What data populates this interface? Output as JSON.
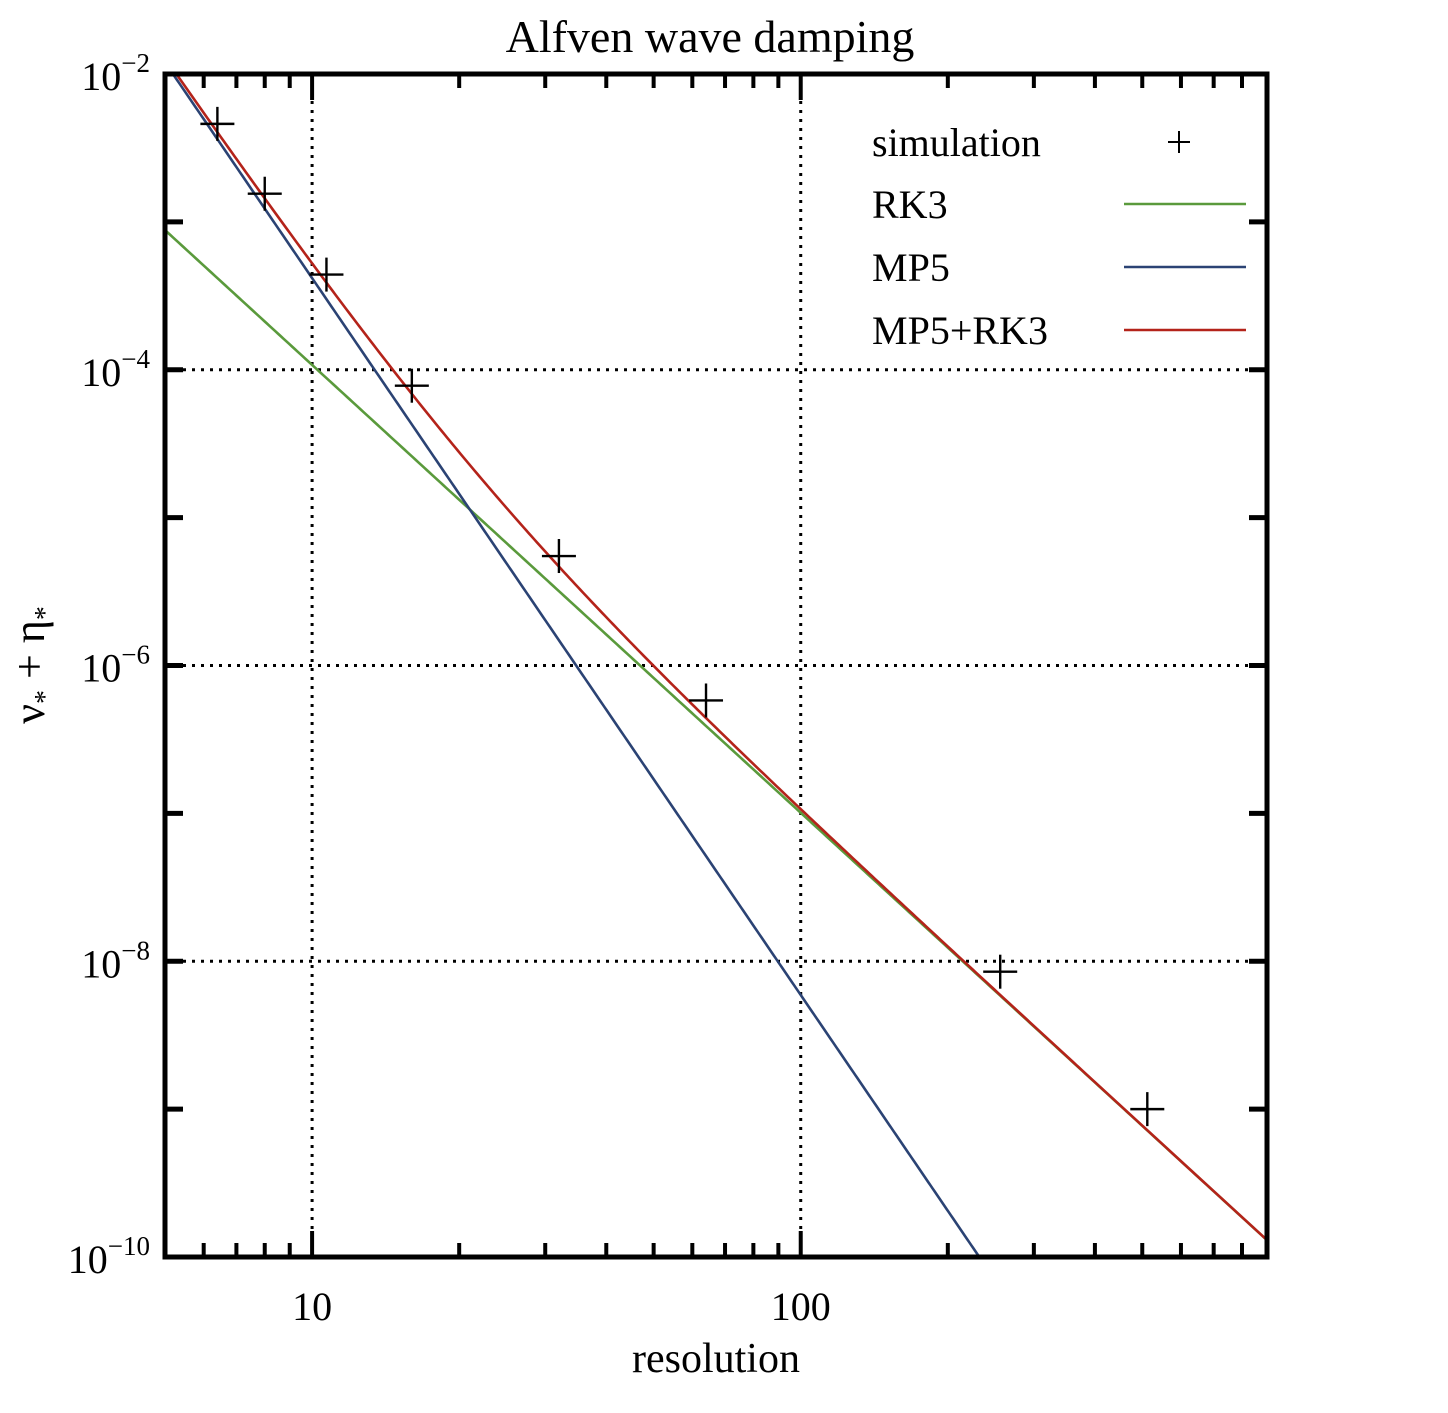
{
  "chart_data": {
    "type": "line",
    "title": "Alfven wave damping",
    "xlabel": "resolution",
    "ylabel_main": "ν",
    "ylabel_sub1": "*",
    "ylabel_mid": " + η",
    "ylabel_sub2": "*",
    "x_scale": "log",
    "y_scale": "log",
    "xlim": [
      5,
      900
    ],
    "ylim": [
      1e-10,
      0.01
    ],
    "grid": "dotted",
    "legend_position": "top-right",
    "x_tick_labels": [
      {
        "value": 10,
        "label": "10"
      },
      {
        "value": 100,
        "label": "100"
      }
    ],
    "y_tick_labels": [
      {
        "value": 0.01,
        "base": "10",
        "exp": "−2"
      },
      {
        "value": 0.0001,
        "base": "10",
        "exp": "−4"
      },
      {
        "value": 1e-06,
        "base": "10",
        "exp": "−6"
      },
      {
        "value": 1e-08,
        "base": "10",
        "exp": "−8"
      },
      {
        "value": 1e-10,
        "base": "10",
        "exp": "−10"
      }
    ],
    "series": [
      {
        "name": "simulation",
        "kind": "markers",
        "marker": "+",
        "color": "#000000",
        "x": [
          6.4,
          8,
          10.7,
          16,
          32,
          64,
          256,
          512
        ],
        "y": [
          0.0046,
          0.00155,
          0.00044,
          7.8e-05,
          5.5e-06,
          5.8e-07,
          8.5e-09,
          1e-09
        ]
      },
      {
        "name": "RK3",
        "kind": "line",
        "color": "#5a9a3c",
        "x": [
          5,
          900
        ],
        "y": [
          0.00088,
          1.3e-10
        ]
      },
      {
        "name": "MP5",
        "kind": "line",
        "color": "#2b4374",
        "x": [
          5,
          232
        ],
        "y": [
          0.012,
          1e-10
        ]
      },
      {
        "name": "MP5+RK3",
        "kind": "sum",
        "components": [
          "RK3",
          "MP5"
        ],
        "color": "#b4231a",
        "x": [
          5.3,
          900
        ],
        "y": [
          0.0103,
          1.3e-10
        ]
      }
    ]
  }
}
